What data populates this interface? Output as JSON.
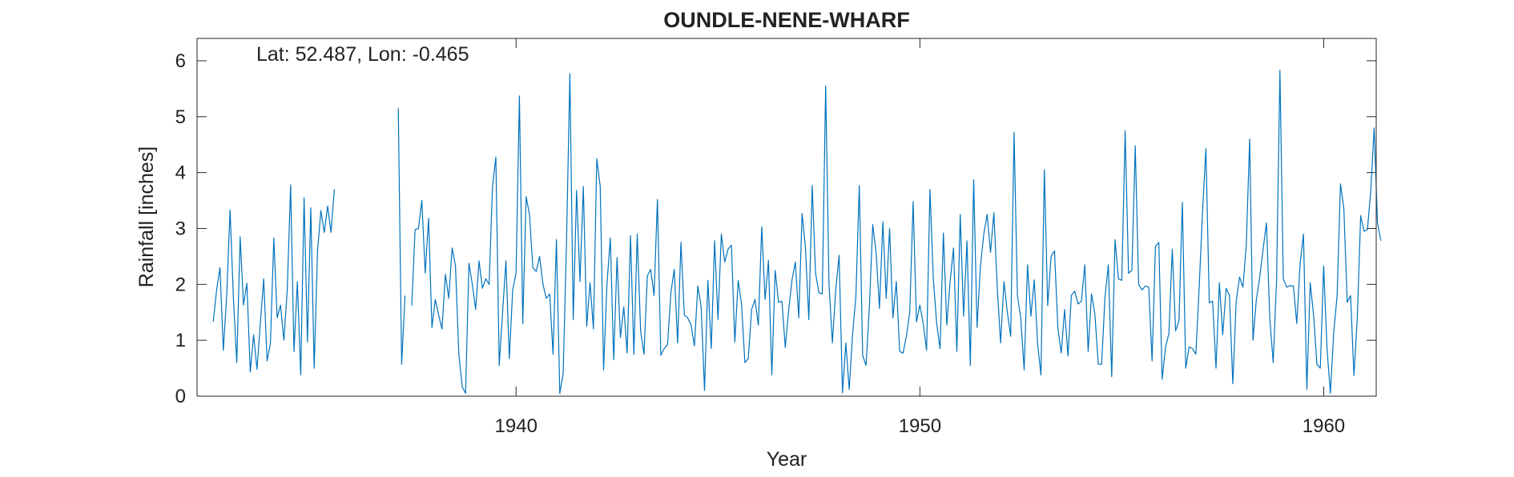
{
  "chart_data": {
    "type": "line",
    "title": "OUNDLE-NENE-WHARF",
    "xlabel": "Year",
    "ylabel": "Rainfall [inches]",
    "annotation": "Lat: 52.487, Lon: -0.465",
    "xlim": [
      1932.1,
      1961.3
    ],
    "ylim": [
      0,
      6.4
    ],
    "xticks": [
      1940,
      1950,
      1960
    ],
    "xtick_labels": [
      "1940",
      "1950",
      "1960"
    ],
    "yticks": [
      0,
      1,
      2,
      3,
      4,
      5,
      6
    ],
    "ytick_labels": [
      "0",
      "1",
      "2",
      "3",
      "4",
      "5",
      "6"
    ],
    "grid": false,
    "box": true,
    "series_color": "#0072BD",
    "series": [
      {
        "name": "",
        "start_year": 1932.5,
        "step_years": 0.08333,
        "values": [
          1.33,
          1.9,
          2.3,
          0.82,
          1.8,
          3.33,
          1.75,
          0.6,
          2.85,
          1.63,
          2.02,
          0.43,
          1.1,
          0.48,
          1.3,
          2.1,
          0.63,
          0.95,
          2.83,
          1.4,
          1.63,
          1.0,
          1.9,
          3.78,
          0.8,
          2.05,
          0.38,
          3.55,
          0.97,
          3.37,
          0.5,
          2.6,
          3.32,
          2.93,
          3.4,
          2.93,
          3.7,
          null,
          null,
          null,
          null,
          null,
          null,
          null,
          null,
          null,
          null,
          null,
          null,
          null,
          null,
          null,
          null,
          null,
          null,
          5.15,
          0.57,
          1.8,
          null,
          1.62,
          2.98,
          3.0,
          3.5,
          2.2,
          3.18,
          1.23,
          1.73,
          1.45,
          1.2,
          2.18,
          1.75,
          2.65,
          2.33,
          0.75,
          0.17,
          0.05,
          2.38,
          2.0,
          1.55,
          2.42,
          1.93,
          2.1,
          2.0,
          3.75,
          4.28,
          0.55,
          1.5,
          2.42,
          0.67,
          1.9,
          2.2,
          5.37,
          1.3,
          3.57,
          3.25,
          2.3,
          2.23,
          2.5,
          2.0,
          1.75,
          1.83,
          0.75,
          2.8,
          0.05,
          0.4,
          2.75,
          5.77,
          1.37,
          3.68,
          2.05,
          3.75,
          1.25,
          2.03,
          1.2,
          4.25,
          3.75,
          0.47,
          2.0,
          2.83,
          0.65,
          2.48,
          1.05,
          1.6,
          0.77,
          2.87,
          0.75,
          2.9,
          1.17,
          0.75,
          2.15,
          2.27,
          1.8,
          3.52,
          0.73,
          0.85,
          0.92,
          1.85,
          2.27,
          0.95,
          2.75,
          1.45,
          1.4,
          1.27,
          0.9,
          1.97,
          1.6,
          0.1,
          2.07,
          0.85,
          2.78,
          1.37,
          2.9,
          2.4,
          2.63,
          2.7,
          0.97,
          2.07,
          1.65,
          0.6,
          0.67,
          1.55,
          1.73,
          1.27,
          3.03,
          1.73,
          2.43,
          0.38,
          2.25,
          1.68,
          1.7,
          0.87,
          1.53,
          2.08,
          2.4,
          1.4,
          3.27,
          2.65,
          1.37,
          3.77,
          2.2,
          1.85,
          1.83,
          5.55,
          2.0,
          0.95,
          1.9,
          2.52,
          0.06,
          0.95,
          0.12,
          1.1,
          1.8,
          3.77,
          0.73,
          0.55,
          1.6,
          3.07,
          2.57,
          1.57,
          3.12,
          1.75,
          3.0,
          1.4,
          2.05,
          0.8,
          0.77,
          1.07,
          1.5,
          3.48,
          1.33,
          1.63,
          1.3,
          0.82,
          3.7,
          2.1,
          1.3,
          0.85,
          2.92,
          1.27,
          2.05,
          2.65,
          0.8,
          3.25,
          1.43,
          2.78,
          0.55,
          3.87,
          1.23,
          2.32,
          2.9,
          3.25,
          2.57,
          3.28,
          1.95,
          0.95,
          2.05,
          1.5,
          1.07,
          4.72,
          1.8,
          1.4,
          0.47,
          2.35,
          1.43,
          2.08,
          0.93,
          0.38,
          4.05,
          1.62,
          2.5,
          2.6,
          1.22,
          0.77,
          1.55,
          0.72,
          1.8,
          1.88,
          1.65,
          1.7,
          2.35,
          0.8,
          1.83,
          1.47,
          0.57,
          0.57,
          1.77,
          2.35,
          0.35,
          2.8,
          2.1,
          2.07,
          4.75,
          2.2,
          2.25,
          4.48,
          2.0,
          1.9,
          1.97,
          1.95,
          0.63,
          2.68,
          2.75,
          0.3,
          0.88,
          1.12,
          2.63,
          1.17,
          1.35,
          3.47,
          0.5,
          0.88,
          0.85,
          0.75,
          1.95,
          3.3,
          4.43,
          1.67,
          1.7,
          0.5,
          2.03,
          1.1,
          1.93,
          1.8,
          0.22,
          1.7,
          2.13,
          1.95,
          2.7,
          4.6,
          1.0,
          1.73,
          2.13,
          2.63,
          3.1,
          1.38,
          0.6,
          2.07,
          5.83,
          2.1,
          1.95,
          1.98,
          1.97,
          1.3,
          2.37,
          2.9,
          0.12,
          2.03,
          1.45,
          0.57,
          0.5,
          2.33,
          0.85,
          0.05,
          1.15,
          1.8,
          3.8,
          3.35,
          1.68,
          1.8,
          0.37,
          1.4,
          3.23,
          2.95,
          2.98,
          3.67,
          4.8,
          3.1,
          2.78
        ]
      }
    ]
  }
}
